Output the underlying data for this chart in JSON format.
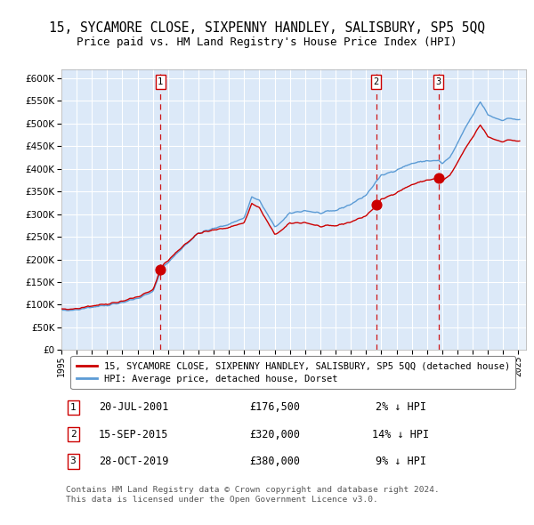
{
  "title": "15, SYCAMORE CLOSE, SIXPENNY HANDLEY, SALISBURY, SP5 5QQ",
  "subtitle": "Price paid vs. HM Land Registry's House Price Index (HPI)",
  "legend_line1": "15, SYCAMORE CLOSE, SIXPENNY HANDLEY, SALISBURY, SP5 5QQ (detached house)",
  "legend_line2": "HPI: Average price, detached house, Dorset",
  "sale_info": [
    {
      "num": "1",
      "date": "20-JUL-2001",
      "price": "£176,500",
      "pct": "2% ↓ HPI"
    },
    {
      "num": "2",
      "date": "15-SEP-2015",
      "price": "£320,000",
      "pct": "14% ↓ HPI"
    },
    {
      "num": "3",
      "date": "28-OCT-2019",
      "price": "£380,000",
      "pct": "9% ↓ HPI"
    }
  ],
  "footer": "Contains HM Land Registry data © Crown copyright and database right 2024.\nThis data is licensed under the Open Government Licence v3.0.",
  "ylim": [
    0,
    620000
  ],
  "yticks": [
    0,
    50000,
    100000,
    150000,
    200000,
    250000,
    300000,
    350000,
    400000,
    450000,
    500000,
    550000,
    600000
  ],
  "background_color": "#dce9f8",
  "hpi_color": "#5b9bd5",
  "price_color": "#cc0000",
  "dashed_color": "#cc0000",
  "grid_color": "#ffffff",
  "title_fontsize": 10.5,
  "subtitle_fontsize": 9
}
